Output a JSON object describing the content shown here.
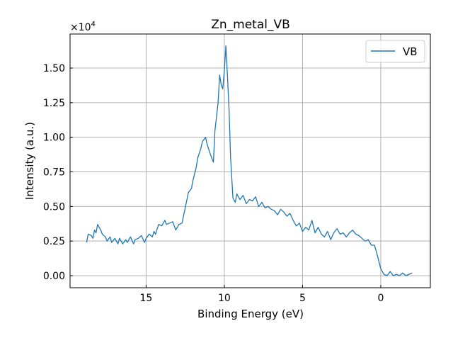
{
  "chart_data": {
    "type": "line",
    "title": "Zn_metal_VB",
    "xlabel": "Binding Energy (eV)",
    "ylabel": "Intensity (a.u.)",
    "y_scale_label": "×10",
    "y_scale_exponent": "4",
    "xlim": [
      19.86,
      -3.17
    ],
    "ylim": [
      -0.087,
      1.746
    ],
    "x_inverted": true,
    "grid": true,
    "legend_position": "top-right",
    "xticks": [
      15,
      10,
      5,
      0
    ],
    "xtick_labels": [
      "15",
      "10",
      "5",
      "0"
    ],
    "yticks": [
      0,
      0.25,
      0.5,
      0.75,
      1.0,
      1.25,
      1.5
    ],
    "ytick_labels": [
      "0.00",
      "0.25",
      "0.50",
      "0.75",
      "1.00",
      "1.25",
      "1.50"
    ],
    "series": [
      {
        "name": "VB",
        "color": "#1f77b4",
        "x": [
          18.8,
          18.7,
          18.5,
          18.4,
          18.3,
          18.2,
          18.1,
          17.9,
          17.8,
          17.6,
          17.5,
          17.3,
          17.2,
          17.0,
          16.8,
          16.7,
          16.5,
          16.3,
          16.2,
          16.0,
          15.8,
          15.7,
          15.5,
          15.3,
          15.1,
          15.0,
          14.8,
          14.6,
          14.5,
          14.4,
          14.2,
          14.0,
          13.8,
          13.7,
          13.5,
          13.3,
          13.1,
          12.9,
          12.7,
          12.5,
          12.3,
          12.1,
          12.0,
          11.8,
          11.7,
          11.5,
          11.4,
          11.2,
          11.1,
          10.9,
          10.8,
          10.7,
          10.6,
          10.4,
          10.3,
          10.2,
          10.1,
          10.0,
          9.9,
          9.8,
          9.7,
          9.6,
          9.45,
          9.3,
          9.2,
          9.0,
          8.8,
          8.6,
          8.4,
          8.2,
          8.0,
          7.8,
          7.6,
          7.4,
          7.2,
          7.0,
          6.8,
          6.6,
          6.4,
          6.2,
          6.0,
          5.8,
          5.6,
          5.4,
          5.2,
          5.0,
          4.8,
          4.6,
          4.4,
          4.2,
          4.0,
          3.8,
          3.6,
          3.4,
          3.2,
          3.0,
          2.8,
          2.6,
          2.4,
          2.2,
          2.0,
          1.8,
          1.6,
          1.4,
          1.2,
          1.0,
          0.8,
          0.6,
          0.4,
          0.2,
          0.0,
          -0.2,
          -0.4,
          -0.6,
          -0.8,
          -1.0,
          -1.2,
          -1.4,
          -1.6,
          -1.8,
          -2.0
        ],
        "y": [
          0.24,
          0.3,
          0.29,
          0.27,
          0.33,
          0.31,
          0.37,
          0.33,
          0.3,
          0.28,
          0.25,
          0.28,
          0.24,
          0.27,
          0.23,
          0.27,
          0.23,
          0.26,
          0.24,
          0.28,
          0.23,
          0.26,
          0.27,
          0.29,
          0.24,
          0.27,
          0.3,
          0.28,
          0.32,
          0.3,
          0.37,
          0.36,
          0.4,
          0.37,
          0.38,
          0.39,
          0.33,
          0.37,
          0.38,
          0.49,
          0.6,
          0.63,
          0.69,
          0.78,
          0.85,
          0.92,
          0.97,
          1.0,
          0.95,
          0.88,
          0.85,
          0.82,
          1.05,
          1.25,
          1.45,
          1.38,
          1.35,
          1.48,
          1.66,
          1.45,
          1.2,
          0.85,
          0.56,
          0.53,
          0.59,
          0.55,
          0.58,
          0.52,
          0.55,
          0.54,
          0.57,
          0.5,
          0.53,
          0.49,
          0.5,
          0.48,
          0.47,
          0.44,
          0.48,
          0.46,
          0.43,
          0.45,
          0.4,
          0.36,
          0.38,
          0.32,
          0.35,
          0.33,
          0.4,
          0.31,
          0.35,
          0.3,
          0.28,
          0.32,
          0.26,
          0.31,
          0.34,
          0.3,
          0.31,
          0.28,
          0.31,
          0.33,
          0.3,
          0.29,
          0.27,
          0.25,
          0.26,
          0.22,
          0.22,
          0.14,
          0.05,
          0.01,
          0.0,
          0.03,
          0.0,
          0.01,
          0.0,
          0.02,
          0.0,
          0.01,
          0.02
        ]
      }
    ]
  }
}
